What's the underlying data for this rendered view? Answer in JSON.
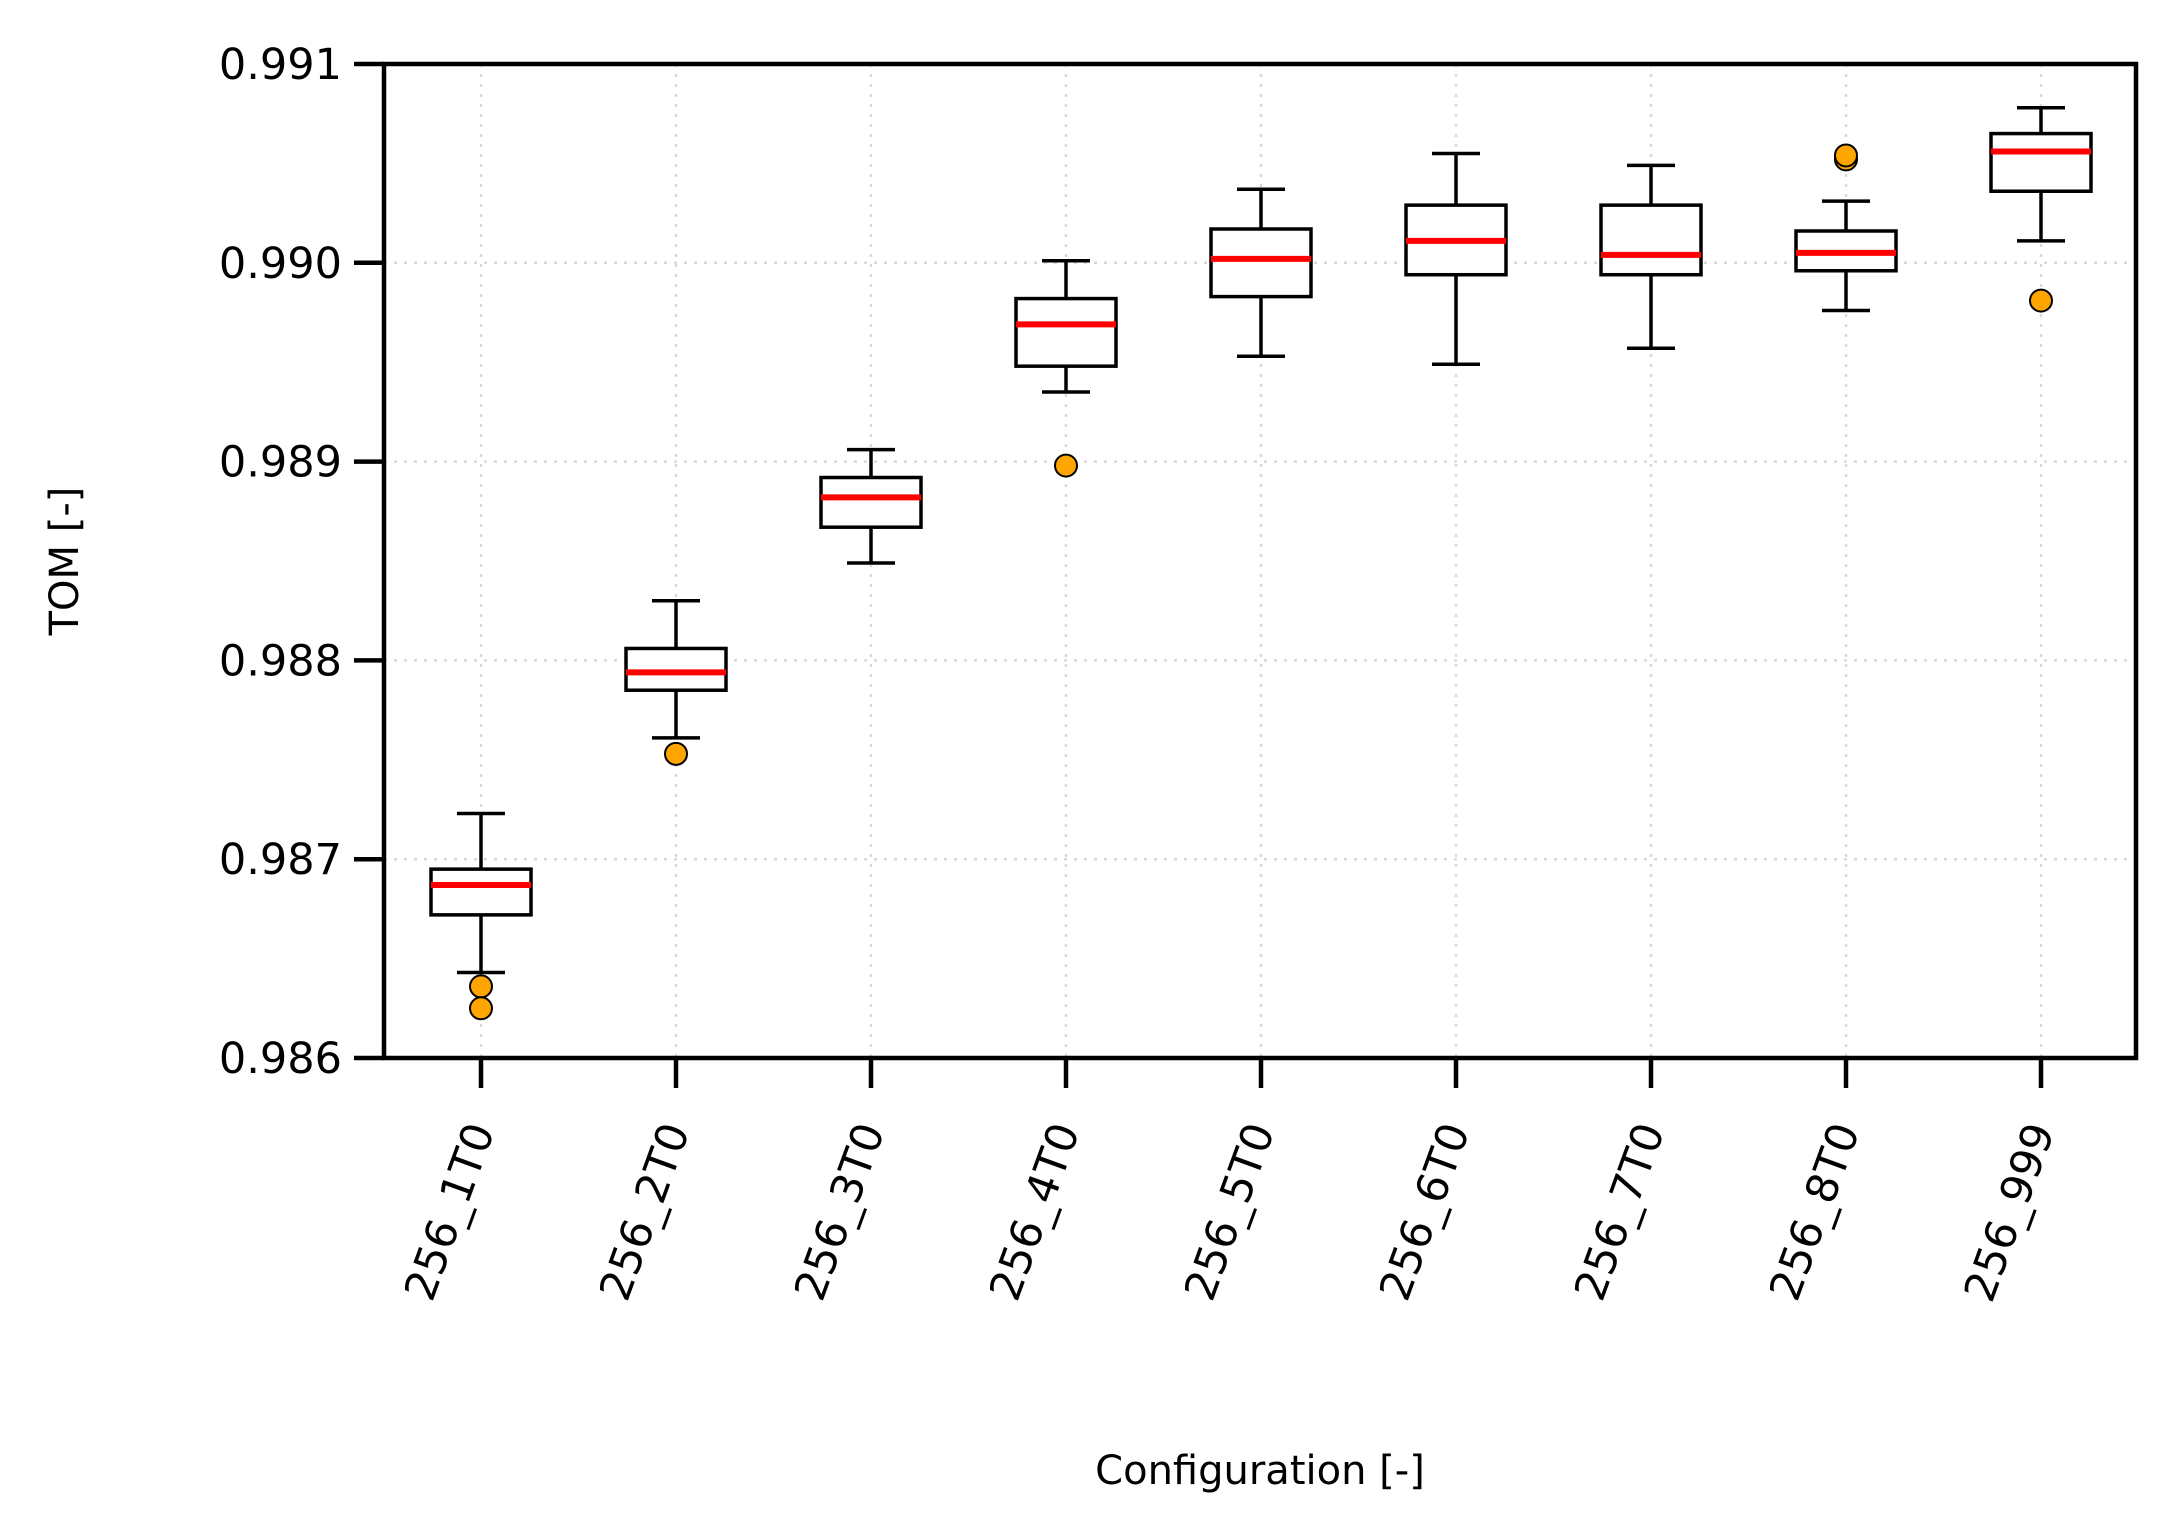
{
  "chart_data": {
    "type": "boxplot",
    "title": "",
    "xlabel": "Configuration [-]",
    "ylabel": "TOM [-]",
    "ylim": [
      0.986,
      0.991
    ],
    "yticks": [
      "0.986",
      "0.987",
      "0.988",
      "0.989",
      "0.990",
      "0.991"
    ],
    "ytick_values": [
      0.986,
      0.987,
      0.988,
      0.989,
      0.99,
      0.991
    ],
    "grid": true,
    "categories": [
      "256_1T0",
      "256_2T0",
      "256_3T0",
      "256_4T0",
      "256_5T0",
      "256_6T0",
      "256_7T0",
      "256_8T0",
      "256_999"
    ],
    "boxes": [
      {
        "whisker_low": 0.98643,
        "q1": 0.98672,
        "median": 0.98687,
        "q3": 0.98695,
        "whisker_high": 0.98723,
        "outliers": [
          0.98636,
          0.98625
        ]
      },
      {
        "whisker_low": 0.98761,
        "q1": 0.98785,
        "median": 0.98794,
        "q3": 0.98806,
        "whisker_high": 0.9883,
        "outliers": [
          0.98753
        ]
      },
      {
        "whisker_low": 0.98849,
        "q1": 0.98867,
        "median": 0.98882,
        "q3": 0.98892,
        "whisker_high": 0.98906,
        "outliers": []
      },
      {
        "whisker_low": 0.98935,
        "q1": 0.98948,
        "median": 0.98969,
        "q3": 0.98982,
        "whisker_high": 0.99001,
        "outliers": [
          0.98898
        ]
      },
      {
        "whisker_low": 0.98953,
        "q1": 0.98983,
        "median": 0.99002,
        "q3": 0.99017,
        "whisker_high": 0.99037,
        "outliers": []
      },
      {
        "whisker_low": 0.98949,
        "q1": 0.98994,
        "median": 0.99011,
        "q3": 0.99029,
        "whisker_high": 0.99055,
        "outliers": []
      },
      {
        "whisker_low": 0.98957,
        "q1": 0.98994,
        "median": 0.99004,
        "q3": 0.99029,
        "whisker_high": 0.99049,
        "outliers": []
      },
      {
        "whisker_low": 0.98976,
        "q1": 0.98996,
        "median": 0.99005,
        "q3": 0.99016,
        "whisker_high": 0.99031,
        "outliers": [
          0.99052,
          0.99054
        ]
      },
      {
        "whisker_low": 0.99011,
        "q1": 0.99036,
        "median": 0.99056,
        "q3": 0.99065,
        "whisker_high": 0.99078,
        "outliers": [
          0.98981
        ]
      }
    ],
    "colors": {
      "median": "#ff0000",
      "outlier_fill": "#ffa500",
      "box_edge": "#000000",
      "grid": "#d9d9d9"
    }
  }
}
